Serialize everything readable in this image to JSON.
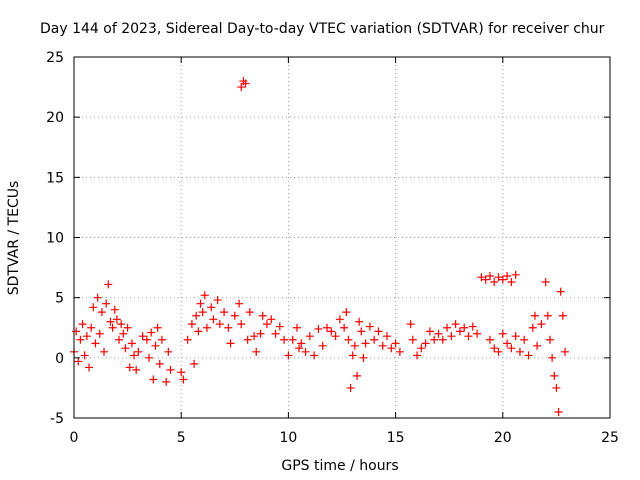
{
  "chart_data": {
    "type": "scatter",
    "title": "Day 144 of 2023, Sidereal Day-to-day VTEC variation (SDTVAR) for receiver chur",
    "xlabel": "GPS time / hours",
    "ylabel": "SDTVAR / TECUs",
    "xlim": [
      0,
      25
    ],
    "ylim": [
      -5,
      25
    ],
    "xticks": [
      0,
      5,
      10,
      15,
      20,
      25
    ],
    "yticks": [
      -5,
      0,
      5,
      10,
      15,
      20,
      25
    ],
    "xtick_labels": [
      "0",
      "5",
      "10",
      "15",
      "20",
      "25"
    ],
    "ytick_labels": [
      "-5",
      "0",
      "5",
      "10",
      "15",
      "20",
      "25"
    ],
    "grid": true,
    "marker": "+",
    "color": "#ff0000",
    "series": [
      {
        "name": "SDTVAR",
        "points": [
          [
            0.0,
            0.5
          ],
          [
            0.1,
            2.2
          ],
          [
            0.2,
            -0.3
          ],
          [
            0.3,
            1.5
          ],
          [
            0.4,
            2.8
          ],
          [
            0.5,
            0.2
          ],
          [
            0.6,
            1.8
          ],
          [
            0.7,
            -0.8
          ],
          [
            0.8,
            2.5
          ],
          [
            0.9,
            4.2
          ],
          [
            1.0,
            1.2
          ],
          [
            1.1,
            5.0
          ],
          [
            1.2,
            2.0
          ],
          [
            1.3,
            3.8
          ],
          [
            1.4,
            0.5
          ],
          [
            1.5,
            4.5
          ],
          [
            1.6,
            6.1
          ],
          [
            1.7,
            3.0
          ],
          [
            1.8,
            2.5
          ],
          [
            1.9,
            4.0
          ],
          [
            2.0,
            3.2
          ],
          [
            2.1,
            1.5
          ],
          [
            2.2,
            2.8
          ],
          [
            2.3,
            2.0
          ],
          [
            2.4,
            0.8
          ],
          [
            2.5,
            2.5
          ],
          [
            2.6,
            -0.8
          ],
          [
            2.7,
            1.2
          ],
          [
            2.8,
            0.2
          ],
          [
            2.9,
            -1.0
          ],
          [
            3.0,
            0.5
          ],
          [
            3.2,
            1.8
          ],
          [
            3.4,
            1.5
          ],
          [
            3.5,
            0.0
          ],
          [
            3.6,
            2.1
          ],
          [
            3.7,
            -1.8
          ],
          [
            3.8,
            1.0
          ],
          [
            3.9,
            2.5
          ],
          [
            4.0,
            -0.5
          ],
          [
            4.1,
            1.5
          ],
          [
            4.3,
            -2.0
          ],
          [
            4.4,
            0.5
          ],
          [
            4.5,
            -1.0
          ],
          [
            5.0,
            -1.2
          ],
          [
            5.1,
            -1.8
          ],
          [
            5.3,
            1.5
          ],
          [
            5.5,
            2.8
          ],
          [
            5.6,
            -0.5
          ],
          [
            5.7,
            3.5
          ],
          [
            5.8,
            2.2
          ],
          [
            5.9,
            4.5
          ],
          [
            6.0,
            3.8
          ],
          [
            6.1,
            5.2
          ],
          [
            6.2,
            2.5
          ],
          [
            6.4,
            4.2
          ],
          [
            6.5,
            3.2
          ],
          [
            6.7,
            4.8
          ],
          [
            6.8,
            2.8
          ],
          [
            7.0,
            3.8
          ],
          [
            7.2,
            2.5
          ],
          [
            7.3,
            1.2
          ],
          [
            7.5,
            3.5
          ],
          [
            7.7,
            4.5
          ],
          [
            7.8,
            2.8
          ],
          [
            7.8,
            22.5
          ],
          [
            7.9,
            23.0
          ],
          [
            8.0,
            22.8
          ],
          [
            8.1,
            1.5
          ],
          [
            8.2,
            3.8
          ],
          [
            8.4,
            1.8
          ],
          [
            8.5,
            0.5
          ],
          [
            8.7,
            2.0
          ],
          [
            8.8,
            3.5
          ],
          [
            9.0,
            2.8
          ],
          [
            9.2,
            3.2
          ],
          [
            9.4,
            2.0
          ],
          [
            9.6,
            2.6
          ],
          [
            9.8,
            1.5
          ],
          [
            10.0,
            0.2
          ],
          [
            10.2,
            1.5
          ],
          [
            10.4,
            2.5
          ],
          [
            10.5,
            0.8
          ],
          [
            10.6,
            1.2
          ],
          [
            10.8,
            0.5
          ],
          [
            11.0,
            1.8
          ],
          [
            11.2,
            0.2
          ],
          [
            11.4,
            2.4
          ],
          [
            11.6,
            1.0
          ],
          [
            11.8,
            2.5
          ],
          [
            12.0,
            2.2
          ],
          [
            12.2,
            1.8
          ],
          [
            12.4,
            3.2
          ],
          [
            12.6,
            2.5
          ],
          [
            12.7,
            3.8
          ],
          [
            12.8,
            1.5
          ],
          [
            12.9,
            -2.5
          ],
          [
            13.0,
            0.2
          ],
          [
            13.1,
            1.0
          ],
          [
            13.2,
            -1.5
          ],
          [
            13.3,
            3.0
          ],
          [
            13.4,
            2.2
          ],
          [
            13.5,
            0.0
          ],
          [
            13.6,
            1.2
          ],
          [
            13.8,
            2.6
          ],
          [
            14.0,
            1.5
          ],
          [
            14.2,
            2.2
          ],
          [
            14.4,
            1.0
          ],
          [
            14.6,
            1.8
          ],
          [
            14.8,
            0.8
          ],
          [
            15.0,
            1.2
          ],
          [
            15.2,
            0.5
          ],
          [
            15.7,
            2.8
          ],
          [
            15.8,
            1.5
          ],
          [
            16.0,
            0.2
          ],
          [
            16.2,
            0.8
          ],
          [
            16.4,
            1.2
          ],
          [
            16.6,
            2.2
          ],
          [
            16.8,
            1.5
          ],
          [
            17.0,
            2.0
          ],
          [
            17.2,
            1.5
          ],
          [
            17.4,
            2.5
          ],
          [
            17.6,
            1.8
          ],
          [
            17.8,
            2.8
          ],
          [
            18.0,
            2.2
          ],
          [
            18.2,
            2.5
          ],
          [
            18.4,
            1.8
          ],
          [
            18.6,
            2.6
          ],
          [
            18.8,
            2.0
          ],
          [
            19.0,
            6.7
          ],
          [
            19.2,
            6.5
          ],
          [
            19.4,
            6.8
          ],
          [
            19.6,
            6.3
          ],
          [
            19.8,
            6.7
          ],
          [
            20.0,
            6.5
          ],
          [
            20.2,
            6.8
          ],
          [
            20.4,
            6.3
          ],
          [
            20.6,
            6.9
          ],
          [
            19.4,
            1.5
          ],
          [
            19.6,
            0.8
          ],
          [
            19.8,
            0.5
          ],
          [
            20.0,
            2.0
          ],
          [
            20.2,
            1.2
          ],
          [
            20.4,
            0.8
          ],
          [
            20.6,
            1.8
          ],
          [
            20.8,
            0.5
          ],
          [
            21.0,
            1.5
          ],
          [
            21.2,
            0.2
          ],
          [
            21.4,
            2.5
          ],
          [
            21.5,
            3.5
          ],
          [
            21.6,
            1.0
          ],
          [
            21.8,
            2.8
          ],
          [
            22.0,
            6.3
          ],
          [
            22.1,
            3.5
          ],
          [
            22.2,
            1.5
          ],
          [
            22.3,
            0.0
          ],
          [
            22.4,
            -1.5
          ],
          [
            22.5,
            -2.5
          ],
          [
            22.6,
            -4.5
          ],
          [
            22.7,
            5.5
          ],
          [
            22.8,
            3.5
          ],
          [
            22.9,
            0.5
          ]
        ]
      }
    ]
  }
}
